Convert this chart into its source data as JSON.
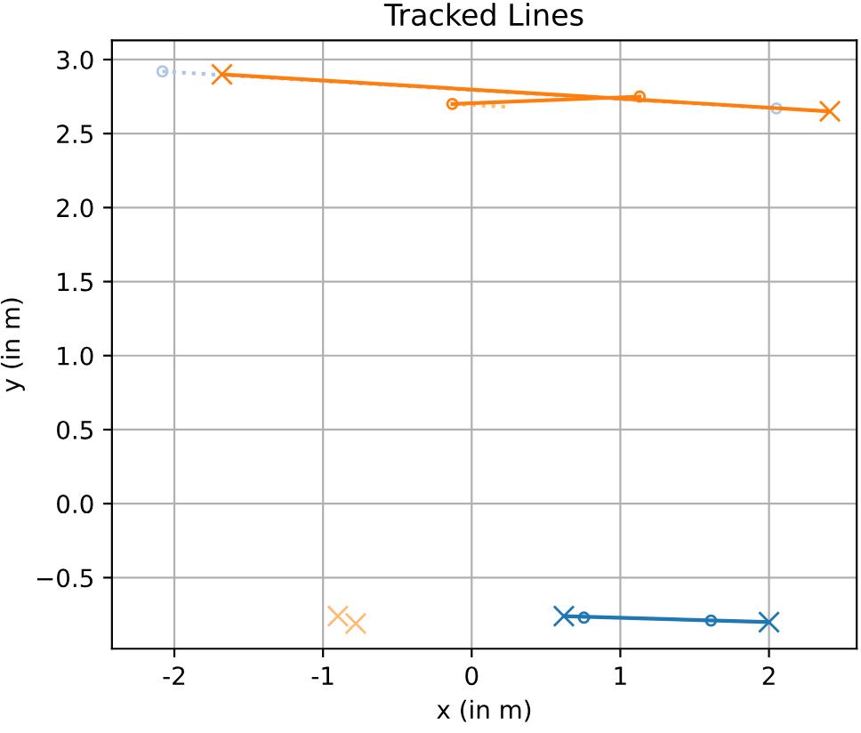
{
  "chart_data": {
    "type": "line",
    "title": "Tracked Lines",
    "xlabel": "x (in m)",
    "ylabel": "y (in m)",
    "xlim": [
      -2.42,
      2.59
    ],
    "ylim": [
      -0.98,
      3.13
    ],
    "xticks": [
      -2,
      -1,
      0,
      1,
      2
    ],
    "yticks": [
      {
        "value": -0.5,
        "label": "−0.5"
      },
      {
        "value": 0,
        "label": "0.0"
      },
      0.5,
      {
        "value": 1,
        "label": "1.0"
      },
      1.5,
      {
        "value": 2,
        "label": "2.0"
      },
      2.5,
      {
        "value": 3,
        "label": "3.0"
      }
    ],
    "grid": true,
    "series": [
      {
        "color": "#aec7e8",
        "x": [
          -2.08,
          2.05
        ],
        "values": [
          2.92,
          2.67
        ],
        "marker": "circle",
        "line_style": "dotted"
      },
      {
        "color": "#ffbb78",
        "x": [
          -0.13,
          0.25
        ],
        "values": [
          2.7,
          2.68
        ],
        "marker": "none",
        "line_style": "dotted"
      },
      {
        "color": "#ff7f0e",
        "x": [
          -1.68,
          2.41
        ],
        "values": [
          2.9,
          2.65
        ],
        "marker": "cross",
        "line_style": "solid"
      },
      {
        "color": "#ff7f0e",
        "x": [
          -0.13,
          1.13
        ],
        "values": [
          2.7,
          2.75
        ],
        "marker": "circle",
        "line_style": "solid"
      },
      {
        "color": "#1f77b4",
        "x": [
          0.62,
          2.0
        ],
        "values": [
          -0.76,
          -0.8
        ],
        "marker": "cross",
        "line_style": "solid"
      },
      {
        "type": "scatter",
        "color": "#1f77b4",
        "x": [
          0.755,
          1.61
        ],
        "values": [
          -0.77,
          -0.79
        ],
        "marker": "circle"
      },
      {
        "type": "scatter",
        "color": "#ffbb78",
        "x": [
          -0.9,
          -0.78
        ],
        "values": [
          -0.76,
          -0.81
        ],
        "marker": "cross"
      }
    ]
  }
}
